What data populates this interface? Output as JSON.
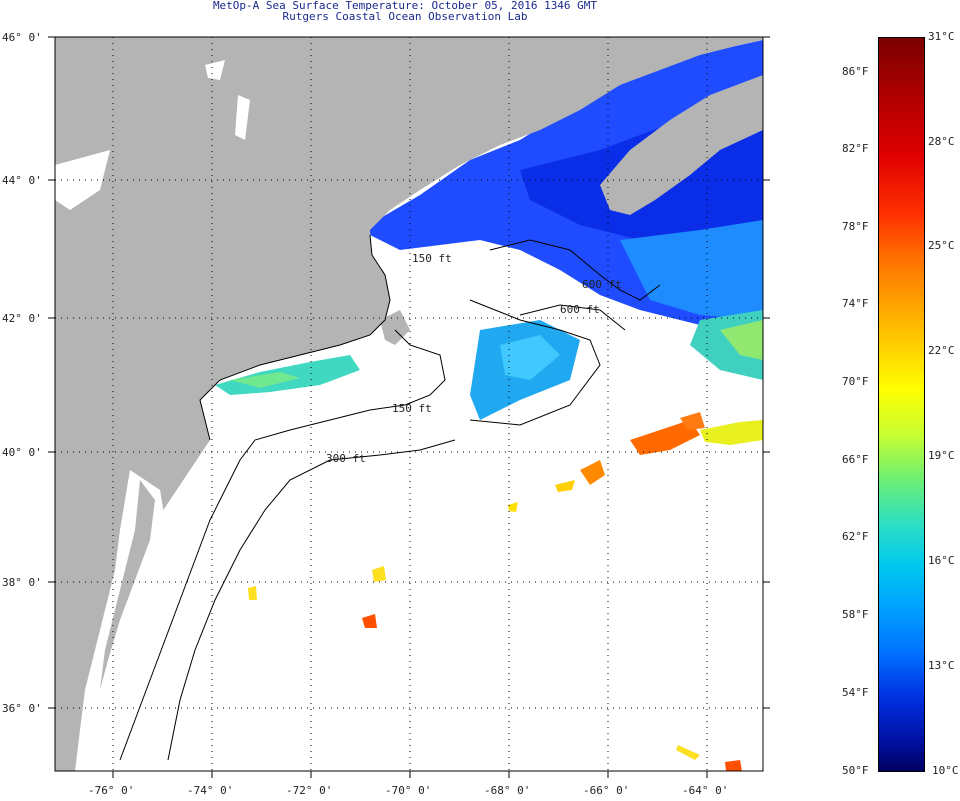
{
  "title": {
    "line1": "MetOp-A Sea Surface Temperature:  October 05, 2016 1346 GMT",
    "line2": "Rutgers Coastal Ocean Observation Lab"
  },
  "map": {
    "lat_labels": [
      "46° 0'",
      "44° 0'",
      "42° 0'",
      "40° 0'",
      "38° 0'",
      "36° 0'"
    ],
    "lon_labels": [
      "-76° 0'",
      "-74° 0'",
      "-72° 0'",
      "-70° 0'",
      "-68° 0'",
      "-66° 0'",
      "-64° 0'"
    ],
    "contour_labels": [
      "150 ft",
      "600 ft",
      "600 ft",
      "300 ft",
      "150 ft"
    ],
    "colors": {
      "land": "#b4b4b4",
      "cloud": "#ffffff",
      "coast": "#000000",
      "grid": "#000000"
    }
  },
  "colorbar": {
    "fahrenheit": [
      "86°F",
      "82°F",
      "78°F",
      "74°F",
      "70°F",
      "66°F",
      "62°F",
      "58°F",
      "54°F",
      "50°F"
    ],
    "celsius": [
      "31°C",
      "28°C",
      "25°C",
      "22°C",
      "19°C",
      "16°C",
      "13°C",
      "10°C"
    ]
  }
}
